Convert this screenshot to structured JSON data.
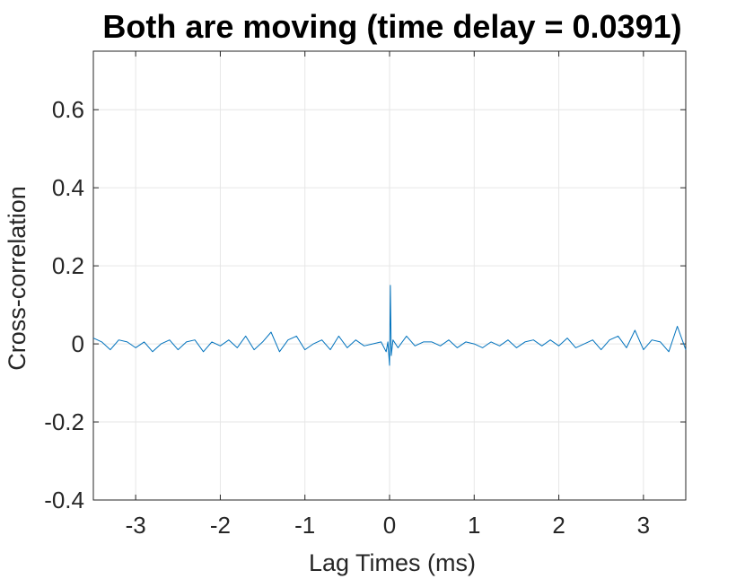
{
  "chart_data": {
    "type": "line",
    "title": "Both are moving (time delay = 0.0391)",
    "xlabel": "Lag Times (ms)",
    "ylabel": "Cross-correlation",
    "xlim": [
      -3.5,
      3.5
    ],
    "ylim": [
      -0.4,
      0.75
    ],
    "x_ticks": [
      -3,
      -2,
      -1,
      0,
      1,
      2,
      3
    ],
    "x_tick_labels": [
      "-3",
      "-2",
      "-1",
      "0",
      "1",
      "2",
      "3"
    ],
    "y_ticks": [
      -0.4,
      -0.2,
      0,
      0.2,
      0.4,
      0.6
    ],
    "y_tick_labels": [
      "-0.4",
      "-0.2",
      "0",
      "0.2",
      "0.4",
      "0.6"
    ],
    "grid": true,
    "colors": {
      "line": "#0072bd",
      "grid": "#e6e6e6",
      "axis": "#262626"
    },
    "series": [
      {
        "x": [
          -3.5,
          -3.4,
          -3.3,
          -3.2,
          -3.1,
          -3.0,
          -2.9,
          -2.8,
          -2.7,
          -2.6,
          -2.5,
          -2.4,
          -2.3,
          -2.2,
          -2.1,
          -2.0,
          -1.9,
          -1.8,
          -1.7,
          -1.6,
          -1.5,
          -1.4,
          -1.3,
          -1.2,
          -1.1,
          -1.0,
          -0.9,
          -0.8,
          -0.7,
          -0.6,
          -0.5,
          -0.4,
          -0.3,
          -0.2,
          -0.1,
          -0.04,
          -0.02,
          0.0,
          0.01,
          0.02,
          0.04,
          0.1,
          0.2,
          0.3,
          0.4,
          0.5,
          0.6,
          0.7,
          0.8,
          0.9,
          1.0,
          1.1,
          1.2,
          1.3,
          1.4,
          1.5,
          1.6,
          1.7,
          1.8,
          1.9,
          2.0,
          2.1,
          2.2,
          2.3,
          2.4,
          2.5,
          2.6,
          2.7,
          2.8,
          2.9,
          3.0,
          3.1,
          3.2,
          3.3,
          3.4,
          3.5
        ],
        "y": [
          0.015,
          0.005,
          -0.015,
          0.01,
          0.005,
          -0.01,
          0.005,
          -0.02,
          0.0,
          0.01,
          -0.015,
          0.005,
          0.01,
          -0.02,
          0.005,
          -0.005,
          0.01,
          -0.01,
          0.02,
          -0.015,
          0.005,
          0.03,
          -0.02,
          0.01,
          0.02,
          -0.015,
          0.0,
          0.01,
          -0.015,
          0.02,
          -0.01,
          0.01,
          -0.005,
          0.0,
          0.005,
          -0.02,
          0.005,
          -0.055,
          0.15,
          -0.03,
          0.01,
          -0.01,
          0.02,
          -0.005,
          0.005,
          0.005,
          -0.005,
          0.01,
          -0.01,
          0.005,
          0.0,
          -0.01,
          0.005,
          -0.005,
          0.01,
          -0.01,
          0.005,
          0.01,
          -0.005,
          0.01,
          -0.005,
          0.015,
          -0.01,
          0.0,
          0.01,
          -0.015,
          0.01,
          0.02,
          -0.01,
          0.035,
          -0.015,
          0.01,
          0.005,
          -0.02,
          0.045,
          -0.015
        ]
      }
    ]
  }
}
